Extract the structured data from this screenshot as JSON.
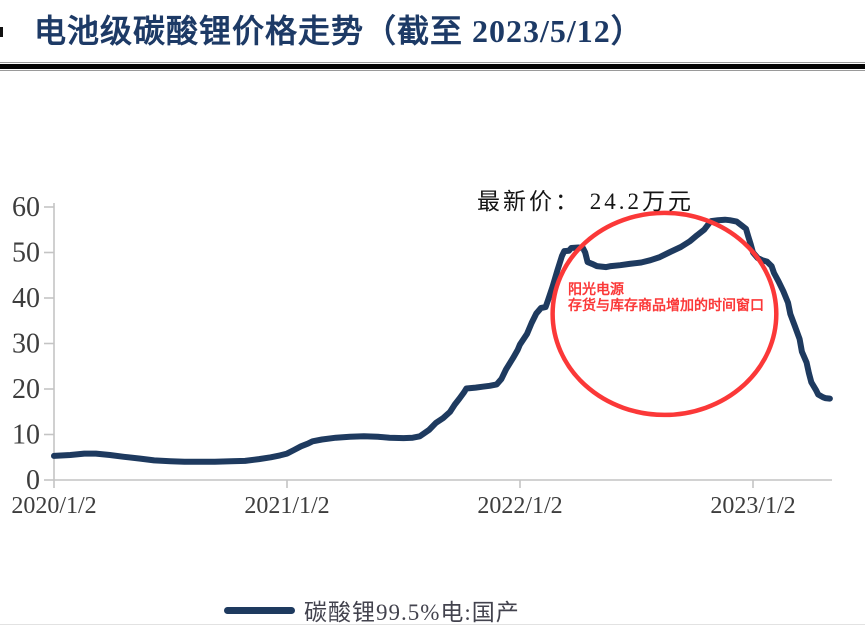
{
  "page": {
    "title": "电池级碳酸锂价格走势（截至 2023/5/12）"
  },
  "annotations": {
    "latest_price": "最新价： 24.2万元",
    "callout_line1": "阳光电源",
    "callout_line2": "存货与库存商品增加的时间窗口"
  },
  "legend": {
    "label": "碳酸锂99.5%电:国产"
  },
  "colors": {
    "title_navy": "#1d3a66",
    "series_navy": "#1e3a5f",
    "annotation_red": "#fb3838",
    "axis_gray": "#c4c4c4",
    "tick_text": "#3d3d3d"
  },
  "chart_data": {
    "type": "line",
    "title": "电池级碳酸锂价格走势（截至 2023/5/12）",
    "xlabel": "",
    "ylabel": "",
    "grid": false,
    "legend_position": "bottom",
    "ylim": [
      0,
      60
    ],
    "xlim": [
      2020.0,
      2023.38
    ],
    "y_tick_values": [
      0,
      10,
      20,
      30,
      40,
      50,
      60
    ],
    "x_tick_values": [
      2020,
      2021,
      2022,
      2023
    ],
    "x_tick_labels": [
      "2020/1/2",
      "2021/1/2",
      "2022/1/2",
      "2023/1/2"
    ],
    "latest_price_label_value": 24.2,
    "red_ellipse": {
      "cx_year": 2022.62,
      "cy_value": 36.5,
      "rx_years": 0.48,
      "ry_value": 22.2
    },
    "series": [
      {
        "name": "碳酸锂99.5%电:国产",
        "color": "#1e3a5f",
        "points": [
          [
            2020.0,
            5.3
          ],
          [
            2020.07,
            5.5
          ],
          [
            2020.13,
            5.8
          ],
          [
            2020.18,
            5.8
          ],
          [
            2020.24,
            5.5
          ],
          [
            2020.3,
            5.1
          ],
          [
            2020.37,
            4.7
          ],
          [
            2020.43,
            4.3
          ],
          [
            2020.5,
            4.1
          ],
          [
            2020.56,
            4.0
          ],
          [
            2020.63,
            4.0
          ],
          [
            2020.69,
            4.0
          ],
          [
            2020.76,
            4.1
          ],
          [
            2020.82,
            4.2
          ],
          [
            2020.88,
            4.6
          ],
          [
            2020.93,
            5.0
          ],
          [
            2020.97,
            5.4
          ],
          [
            2021.0,
            5.8
          ],
          [
            2021.03,
            6.6
          ],
          [
            2021.06,
            7.4
          ],
          [
            2021.09,
            8.0
          ],
          [
            2021.11,
            8.5
          ],
          [
            2021.15,
            8.9
          ],
          [
            2021.21,
            9.3
          ],
          [
            2021.27,
            9.5
          ],
          [
            2021.33,
            9.6
          ],
          [
            2021.39,
            9.5
          ],
          [
            2021.44,
            9.3
          ],
          [
            2021.5,
            9.2
          ],
          [
            2021.54,
            9.3
          ],
          [
            2021.57,
            9.6
          ],
          [
            2021.61,
            11.0
          ],
          [
            2021.64,
            12.6
          ],
          [
            2021.67,
            13.6
          ],
          [
            2021.7,
            15.0
          ],
          [
            2021.72,
            16.6
          ],
          [
            2021.74,
            17.9
          ],
          [
            2021.76,
            19.3
          ],
          [
            2021.77,
            20.1
          ],
          [
            2021.81,
            20.3
          ],
          [
            2021.84,
            20.5
          ],
          [
            2021.87,
            20.7
          ],
          [
            2021.9,
            21.0
          ],
          [
            2021.92,
            22.2
          ],
          [
            2021.94,
            24.3
          ],
          [
            2021.97,
            26.8
          ],
          [
            2021.99,
            28.6
          ],
          [
            2022.0,
            29.8
          ],
          [
            2022.03,
            32.1
          ],
          [
            2022.05,
            34.5
          ],
          [
            2022.07,
            36.6
          ],
          [
            2022.09,
            37.8
          ],
          [
            2022.11,
            38.0
          ],
          [
            2022.12,
            39.5
          ],
          [
            2022.14,
            42.5
          ],
          [
            2022.16,
            46.0
          ],
          [
            2022.18,
            49.2
          ],
          [
            2022.19,
            50.3
          ],
          [
            2022.21,
            50.4
          ],
          [
            2022.22,
            51.0
          ],
          [
            2022.25,
            51.1
          ],
          [
            2022.27,
            51.0
          ],
          [
            2022.28,
            50.0
          ],
          [
            2022.29,
            47.9
          ],
          [
            2022.31,
            47.5
          ],
          [
            2022.33,
            47.0
          ],
          [
            2022.37,
            46.8
          ],
          [
            2022.39,
            47.0
          ],
          [
            2022.43,
            47.2
          ],
          [
            2022.47,
            47.5
          ],
          [
            2022.52,
            47.8
          ],
          [
            2022.56,
            48.3
          ],
          [
            2022.6,
            49.0
          ],
          [
            2022.64,
            50.0
          ],
          [
            2022.69,
            51.2
          ],
          [
            2022.73,
            52.5
          ],
          [
            2022.76,
            53.8
          ],
          [
            2022.79,
            55.0
          ],
          [
            2022.81,
            56.3
          ],
          [
            2022.82,
            56.9
          ],
          [
            2022.85,
            57.1
          ],
          [
            2022.88,
            57.2
          ],
          [
            2022.9,
            57.1
          ],
          [
            2022.93,
            56.8
          ],
          [
            2022.95,
            56.0
          ],
          [
            2022.97,
            55.2
          ],
          [
            2022.98,
            53.5
          ],
          [
            2022.99,
            51.8
          ],
          [
            2023.0,
            50.0
          ],
          [
            2023.02,
            48.8
          ],
          [
            2023.04,
            48.3
          ],
          [
            2023.06,
            48.0
          ],
          [
            2023.08,
            47.0
          ],
          [
            2023.09,
            45.5
          ],
          [
            2023.11,
            43.6
          ],
          [
            2023.13,
            41.5
          ],
          [
            2023.15,
            39.0
          ],
          [
            2023.16,
            36.5
          ],
          [
            2023.18,
            33.8
          ],
          [
            2023.2,
            31.0
          ],
          [
            2023.21,
            28.2
          ],
          [
            2023.23,
            25.8
          ],
          [
            2023.24,
            23.5
          ],
          [
            2023.25,
            21.5
          ],
          [
            2023.27,
            19.8
          ],
          [
            2023.28,
            18.8
          ],
          [
            2023.3,
            18.2
          ],
          [
            2023.31,
            18.0
          ],
          [
            2023.33,
            17.9
          ]
        ]
      }
    ]
  }
}
